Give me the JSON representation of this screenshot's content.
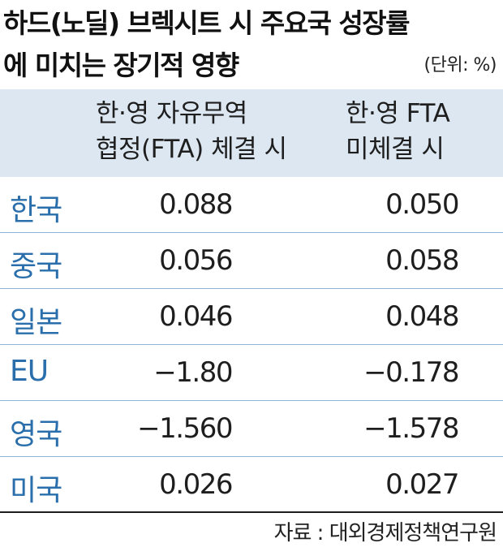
{
  "title": {
    "line1": "하드(노딜) 브렉시트 시 주요국 성장률",
    "line2": "에 미치는 장기적 영향",
    "unit": "(단위: %)"
  },
  "table": {
    "headers": {
      "col1": {
        "line1": "한·영 자유무역",
        "line2": "협정(FTA) 체결 시"
      },
      "col2": {
        "line1": "한·영 FTA",
        "line2": "미체결 시"
      }
    },
    "rows": [
      {
        "country": "한국",
        "fta": "0.088",
        "no_fta": "0.050"
      },
      {
        "country": "중국",
        "fta": "0.056",
        "no_fta": "0.058"
      },
      {
        "country": "일본",
        "fta": "0.046",
        "no_fta": "0.048"
      },
      {
        "country": "EU",
        "fta": "−1.80",
        "no_fta": "−0.178"
      },
      {
        "country": "영국",
        "fta": "−1.560",
        "no_fta": "−1.578"
      },
      {
        "country": "미국",
        "fta": "0.026",
        "no_fta": "0.027"
      }
    ]
  },
  "source": "자료 : 대외경제정책연구원",
  "colors": {
    "header_bg": "#dce7f1",
    "country_text": "#2a6fab",
    "row_separator": "#8fb4d6"
  }
}
